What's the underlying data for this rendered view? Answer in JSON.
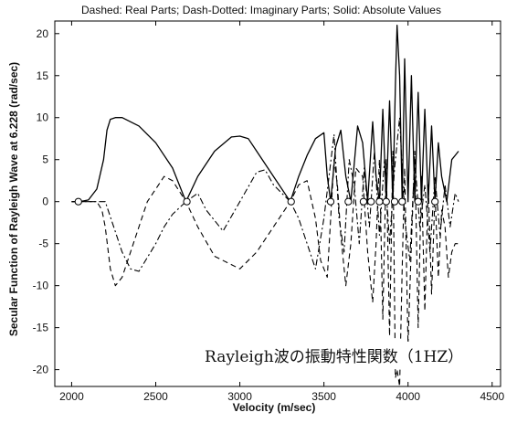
{
  "chart_data": {
    "type": "line",
    "title": "Dashed: Real Parts;  Dash-Dotted: Imaginary Parts;  Solid: Absolute Values",
    "xlabel": "Velocity (m/sec)",
    "ylabel": "Secular Function of Rayleigh Wave at 6.228 (rad/sec)",
    "xlim": [
      1900,
      4550
    ],
    "ylim": [
      -22,
      21.5
    ],
    "xticks": [
      2000,
      2500,
      3000,
      3500,
      4000,
      4500
    ],
    "yticks": [
      -20,
      -15,
      -10,
      -5,
      0,
      5,
      10,
      15,
      20
    ],
    "grid": false,
    "annotation": "Rayleigh波の振動特性関数（1HZ）",
    "series": [
      {
        "name": "Absolute Values",
        "style": "solid",
        "x": [
          2000,
          2050,
          2100,
          2150,
          2190,
          2210,
          2230,
          2260,
          2300,
          2400,
          2500,
          2600,
          2680,
          2750,
          2850,
          2950,
          3000,
          3050,
          3100,
          3200,
          3300,
          3350,
          3400,
          3450,
          3500,
          3520,
          3540,
          3570,
          3600,
          3630,
          3660,
          3700,
          3730,
          3760,
          3790,
          3810,
          3830,
          3850,
          3870,
          3890,
          3910,
          3925,
          3935,
          3950,
          3965,
          3980,
          4000,
          4020,
          4040,
          4060,
          4080,
          4100,
          4120,
          4140,
          4160,
          4180,
          4200,
          4230,
          4260,
          4280,
          4300
        ],
        "y": [
          0,
          0,
          0.2,
          1.5,
          5,
          8.5,
          9.8,
          10,
          10,
          9,
          7,
          4,
          0,
          3,
          6,
          7.7,
          7.8,
          7.5,
          6,
          3,
          0,
          3,
          5.5,
          7.5,
          8.2,
          3,
          0,
          6.5,
          8.5,
          3,
          0,
          9,
          7,
          0,
          9.5,
          3,
          0,
          11,
          0,
          12,
          0,
          14,
          21,
          15,
          0,
          17,
          0,
          15,
          0,
          13,
          0,
          11,
          0,
          9,
          0,
          7,
          3,
          0,
          5,
          5.5,
          6
        ]
      },
      {
        "name": "Real Parts",
        "style": "dashed",
        "x": [
          2000,
          2150,
          2180,
          2200,
          2230,
          2260,
          2300,
          2350,
          2450,
          2550,
          2600,
          2680,
          2750,
          2850,
          3000,
          3100,
          3200,
          3300,
          3350,
          3400,
          3450,
          3480,
          3520,
          3540,
          3560,
          3580,
          3600,
          3630,
          3660,
          3690,
          3730,
          3760,
          3790,
          3810,
          3830,
          3850,
          3870,
          3890,
          3910,
          3925,
          3935,
          3950,
          3965,
          3980,
          4000,
          4020,
          4040,
          4060,
          4080,
          4100,
          4120,
          4140,
          4160,
          4180,
          4200,
          4220,
          4240,
          4260,
          4280,
          4300
        ],
        "y": [
          0,
          0,
          -1,
          -3,
          -8,
          -10,
          -9,
          -6,
          0,
          3,
          2.5,
          0,
          -3,
          -6.5,
          -8,
          -6,
          -3,
          0,
          2,
          2.5,
          -2,
          -7,
          -9,
          -2,
          5,
          2,
          -4,
          -10,
          -5,
          4,
          3,
          -6,
          -12,
          -5,
          5,
          -14,
          5,
          -16,
          6,
          -21,
          -20,
          -22,
          -8,
          4,
          -17,
          -5,
          6,
          -15,
          3,
          -13,
          2,
          -11,
          1,
          -9,
          -1,
          -3,
          -9,
          -6,
          -5,
          -5
        ]
      },
      {
        "name": "Imaginary Parts",
        "style": "dashdot",
        "x": [
          2000,
          2150,
          2200,
          2250,
          2300,
          2350,
          2400,
          2500,
          2550,
          2600,
          2680,
          2750,
          2800,
          2900,
          3000,
          3100,
          3150,
          3200,
          3300,
          3350,
          3400,
          3450,
          3500,
          3530,
          3560,
          3590,
          3620,
          3650,
          3680,
          3710,
          3740,
          3770,
          3800,
          3830,
          3860,
          3890,
          3920,
          3950,
          3980,
          4010,
          4040,
          4070,
          4100,
          4130,
          4160,
          4190,
          4220,
          4250,
          4280,
          4300
        ],
        "y": [
          0,
          0,
          0,
          -3,
          -6,
          -8,
          -8.3,
          -5,
          -3,
          -1.5,
          0,
          1,
          -1,
          -3.5,
          0,
          3.5,
          3.8,
          2,
          0,
          -2,
          -5,
          -8,
          -2,
          3,
          8,
          -2,
          -6,
          5,
          2,
          -5,
          4,
          -3,
          6,
          -4,
          5,
          -5,
          4,
          10,
          -2,
          -7,
          5,
          -3,
          2,
          -6,
          3,
          -4,
          2,
          -3,
          1,
          0
        ]
      }
    ],
    "markers": {
      "style": "open-circle",
      "y": 0,
      "x": [
        2040,
        2685,
        3305,
        3540,
        3645,
        3735,
        3780,
        3830,
        3870,
        3920,
        3965,
        4060,
        4160
      ]
    }
  }
}
